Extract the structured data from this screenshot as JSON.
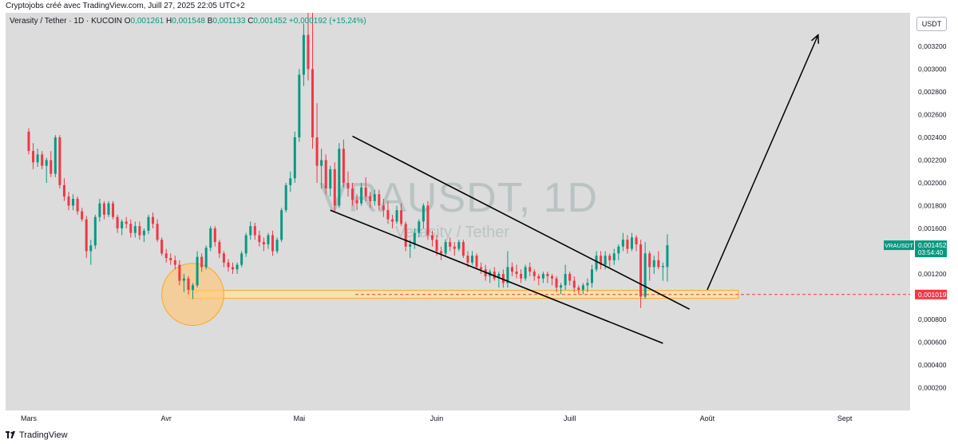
{
  "header": {
    "credit": "Cryptojobs créé avec TradingView.com, Juill 27, 2025 22:05 UTC+2"
  },
  "legend": {
    "symbol": "Verasity / Tether · 1D · KUCOIN",
    "open_label": "O",
    "open": "0,001261",
    "high_label": "H",
    "high": "0,001548",
    "low_label": "B",
    "low": "0,001133",
    "close_label": "C",
    "close": "0,001452",
    "change": "+0,000192 (+15,24%)"
  },
  "watermark": {
    "ticker": "VRAUSDT, 1D",
    "name": "Verasity / Tether"
  },
  "currency_button": "USDT",
  "colors": {
    "up": "#089981",
    "down": "#f23645",
    "zone_fill": "#fce3a6",
    "zone_border": "#f7a823",
    "circle_fill": "#fcc87e",
    "circle_border": "#f7a823",
    "line": "#000000",
    "axis_text": "#131722"
  },
  "chart_data": {
    "type": "candlestick",
    "title": "VRAUSDT, 1D",
    "y_ticks": [
      "0,003200",
      "0,003000",
      "0,002800",
      "0,002600",
      "0,002400",
      "0,002200",
      "0,002000",
      "0,001800",
      "0,001600",
      "0,001400",
      "0,001200",
      "0,000800",
      "0,000600",
      "0,000400",
      "0,000200"
    ],
    "x_ticks": [
      {
        "label": "Mars",
        "day": 0
      },
      {
        "label": "Avr",
        "day": 31
      },
      {
        "label": "Mai",
        "day": 61
      },
      {
        "label": "Juin",
        "day": 92
      },
      {
        "label": "Juill",
        "day": 122
      },
      {
        "label": "Août",
        "day": 153
      },
      {
        "label": "Sept",
        "day": 184
      }
    ],
    "price_label": {
      "symbol": "VRAUSDT",
      "value": "0,001452",
      "countdown": "03:54:40"
    },
    "level_label": {
      "value": "0,001019",
      "price": 0.001019
    },
    "support_zone": {
      "low": 0.000985,
      "high": 0.001055,
      "from_day": 36,
      "to_day": 160
    },
    "highlight_circle": {
      "center_day": 37,
      "center_price": 0.00102,
      "radius_days": 7
    },
    "channel": [
      {
        "name": "upper-line",
        "points": [
          [
            73,
            0.00241
          ],
          [
            149,
            0.00089
          ]
        ]
      },
      {
        "name": "lower-line",
        "points": [
          [
            68,
            0.00176
          ],
          [
            143,
            0.00059
          ]
        ]
      }
    ],
    "projection": {
      "from": [
        153,
        0.00106
      ],
      "to": [
        178,
        0.0033
      ]
    },
    "candles": [
      [
        0.00245,
        0.00248,
        0.00225,
        0.00228
      ],
      [
        0.00228,
        0.00235,
        0.00212,
        0.00218
      ],
      [
        0.00218,
        0.0023,
        0.00214,
        0.00225
      ],
      [
        0.00225,
        0.00228,
        0.00212,
        0.00215
      ],
      [
        0.00215,
        0.00222,
        0.002,
        0.0022
      ],
      [
        0.0022,
        0.00228,
        0.00205,
        0.00208
      ],
      [
        0.00208,
        0.00242,
        0.00205,
        0.0024
      ],
      [
        0.0024,
        0.00242,
        0.00195,
        0.00198
      ],
      [
        0.00198,
        0.00204,
        0.00184,
        0.00188
      ],
      [
        0.00188,
        0.00192,
        0.00176,
        0.0018
      ],
      [
        0.0018,
        0.0019,
        0.00176,
        0.00186
      ],
      [
        0.00186,
        0.00188,
        0.00172,
        0.00175
      ],
      [
        0.00175,
        0.00178,
        0.00166,
        0.00168
      ],
      [
        0.00168,
        0.00171,
        0.00134,
        0.0014
      ],
      [
        0.0014,
        0.0015,
        0.00128,
        0.00145
      ],
      [
        0.00145,
        0.00172,
        0.00142,
        0.0017
      ],
      [
        0.0017,
        0.00186,
        0.00166,
        0.00182
      ],
      [
        0.00182,
        0.00184,
        0.00168,
        0.00172
      ],
      [
        0.00172,
        0.00184,
        0.0017,
        0.00182
      ],
      [
        0.00182,
        0.00184,
        0.00168,
        0.0017
      ],
      [
        0.0017,
        0.00172,
        0.00156,
        0.0016
      ],
      [
        0.0016,
        0.00168,
        0.00154,
        0.00166
      ],
      [
        0.00166,
        0.0017,
        0.0016,
        0.00164
      ],
      [
        0.00164,
        0.00168,
        0.00152,
        0.00156
      ],
      [
        0.00156,
        0.00166,
        0.00152,
        0.00162
      ],
      [
        0.00162,
        0.00166,
        0.0015,
        0.00154
      ],
      [
        0.00154,
        0.0016,
        0.00148,
        0.00158
      ],
      [
        0.00158,
        0.00172,
        0.00155,
        0.0017
      ],
      [
        0.0017,
        0.00174,
        0.0016,
        0.00164
      ],
      [
        0.00164,
        0.00168,
        0.00148,
        0.0015
      ],
      [
        0.0015,
        0.00152,
        0.00136,
        0.00138
      ],
      [
        0.00138,
        0.00142,
        0.0013,
        0.00134
      ],
      [
        0.00134,
        0.00138,
        0.00128,
        0.00132
      ],
      [
        0.00132,
        0.00136,
        0.00124,
        0.00128
      ],
      [
        0.00128,
        0.00132,
        0.0011,
        0.00114
      ],
      [
        0.00114,
        0.0012,
        0.00104,
        0.00116
      ],
      [
        0.00116,
        0.00118,
        0.00102,
        0.00106
      ],
      [
        0.00106,
        0.00112,
        0.00098,
        0.0011
      ],
      [
        0.0011,
        0.0014,
        0.00108,
        0.00135
      ],
      [
        0.00135,
        0.00138,
        0.00122,
        0.00126
      ],
      [
        0.00126,
        0.00145,
        0.00124,
        0.00143
      ],
      [
        0.00143,
        0.00162,
        0.0014,
        0.0016
      ],
      [
        0.0016,
        0.00162,
        0.00144,
        0.00148
      ],
      [
        0.00148,
        0.0015,
        0.00134,
        0.00138
      ],
      [
        0.00138,
        0.0014,
        0.00126,
        0.0013
      ],
      [
        0.0013,
        0.00133,
        0.00122,
        0.00126
      ],
      [
        0.00126,
        0.0013,
        0.0012,
        0.00124
      ],
      [
        0.00124,
        0.0013,
        0.0012,
        0.00128
      ],
      [
        0.00128,
        0.0014,
        0.00126,
        0.00138
      ],
      [
        0.00138,
        0.00156,
        0.00135,
        0.00154
      ],
      [
        0.00154,
        0.00166,
        0.0015,
        0.00162
      ],
      [
        0.00162,
        0.00165,
        0.0015,
        0.00154
      ],
      [
        0.00154,
        0.00158,
        0.00144,
        0.00148
      ],
      [
        0.00148,
        0.00152,
        0.0014,
        0.00146
      ],
      [
        0.00146,
        0.00156,
        0.00142,
        0.00154
      ],
      [
        0.00154,
        0.00158,
        0.00136,
        0.0014
      ],
      [
        0.0014,
        0.00152,
        0.00138,
        0.0015
      ],
      [
        0.0015,
        0.00178,
        0.00148,
        0.00176
      ],
      [
        0.00176,
        0.002,
        0.00174,
        0.00198
      ],
      [
        0.00198,
        0.0021,
        0.00192,
        0.00204
      ],
      [
        0.00204,
        0.00245,
        0.002,
        0.0024
      ],
      [
        0.0024,
        0.003,
        0.00236,
        0.00295
      ],
      [
        0.00295,
        0.0034,
        0.00285,
        0.0033
      ],
      [
        0.0033,
        0.0036,
        0.0029,
        0.003
      ],
      [
        0.003,
        0.0036,
        0.0023,
        0.0024
      ],
      [
        0.0024,
        0.0027,
        0.002,
        0.00215
      ],
      [
        0.00215,
        0.0023,
        0.00195,
        0.0022
      ],
      [
        0.0022,
        0.00225,
        0.0019,
        0.00195
      ],
      [
        0.00195,
        0.00215,
        0.00188,
        0.00212
      ],
      [
        0.00212,
        0.00218,
        0.00175,
        0.0018
      ],
      [
        0.0018,
        0.00235,
        0.00178,
        0.0023
      ],
      [
        0.0023,
        0.00238,
        0.00196,
        0.002
      ],
      [
        0.002,
        0.0021,
        0.00188,
        0.00195
      ],
      [
        0.00195,
        0.002,
        0.0018,
        0.00185
      ],
      [
        0.00185,
        0.0019,
        0.00176,
        0.00182
      ],
      [
        0.00182,
        0.002,
        0.0018,
        0.00196
      ],
      [
        0.00196,
        0.00205,
        0.00184,
        0.00188
      ],
      [
        0.00188,
        0.00192,
        0.00178,
        0.00184
      ],
      [
        0.00184,
        0.00194,
        0.0018,
        0.0019
      ],
      [
        0.0019,
        0.00194,
        0.00176,
        0.0018
      ],
      [
        0.0018,
        0.00186,
        0.0017,
        0.00176
      ],
      [
        0.00176,
        0.00184,
        0.00164,
        0.00168
      ],
      [
        0.00168,
        0.00172,
        0.0016,
        0.00166
      ],
      [
        0.00166,
        0.0018,
        0.00164,
        0.00176
      ],
      [
        0.00176,
        0.00182,
        0.00162,
        0.00164
      ],
      [
        0.00164,
        0.00166,
        0.0014,
        0.00144
      ],
      [
        0.00144,
        0.0015,
        0.00134,
        0.00146
      ],
      [
        0.00146,
        0.0016,
        0.00142,
        0.00156
      ],
      [
        0.00156,
        0.00168,
        0.00152,
        0.00166
      ],
      [
        0.00166,
        0.00182,
        0.0016,
        0.0018
      ],
      [
        0.0018,
        0.00184,
        0.0015,
        0.00154
      ],
      [
        0.00154,
        0.00158,
        0.00144,
        0.0015
      ],
      [
        0.0015,
        0.00154,
        0.00136,
        0.0014
      ],
      [
        0.0014,
        0.00144,
        0.00132,
        0.00138
      ],
      [
        0.00138,
        0.0015,
        0.00136,
        0.00148
      ],
      [
        0.00148,
        0.00152,
        0.0014,
        0.00144
      ],
      [
        0.00144,
        0.00148,
        0.00136,
        0.00142
      ],
      [
        0.00142,
        0.0015,
        0.0014,
        0.00148
      ],
      [
        0.00148,
        0.0015,
        0.00134,
        0.00136
      ],
      [
        0.00136,
        0.0014,
        0.00126,
        0.0013
      ],
      [
        0.0013,
        0.0014,
        0.00128,
        0.00136
      ],
      [
        0.00136,
        0.00138,
        0.00124,
        0.00126
      ],
      [
        0.00126,
        0.0013,
        0.0012,
        0.00124
      ],
      [
        0.00124,
        0.00128,
        0.00114,
        0.00118
      ],
      [
        0.00118,
        0.00124,
        0.00112,
        0.00122
      ],
      [
        0.00122,
        0.00126,
        0.00114,
        0.00116
      ],
      [
        0.00116,
        0.00122,
        0.00108,
        0.0012
      ],
      [
        0.0012,
        0.00124,
        0.00108,
        0.00112
      ],
      [
        0.00112,
        0.0014,
        0.00108,
        0.00126
      ],
      [
        0.00126,
        0.0013,
        0.00118,
        0.00122
      ],
      [
        0.00122,
        0.00128,
        0.00116,
        0.0012
      ],
      [
        0.0012,
        0.00124,
        0.00112,
        0.00116
      ],
      [
        0.00116,
        0.00128,
        0.00114,
        0.00126
      ],
      [
        0.00126,
        0.0013,
        0.00118,
        0.00122
      ],
      [
        0.00122,
        0.00124,
        0.00114,
        0.00118
      ],
      [
        0.00118,
        0.0012,
        0.0011,
        0.00116
      ],
      [
        0.00116,
        0.00122,
        0.00112,
        0.0012
      ],
      [
        0.0012,
        0.00122,
        0.00112,
        0.00118
      ],
      [
        0.00118,
        0.0012,
        0.0011,
        0.00116
      ],
      [
        0.00116,
        0.00118,
        0.00104,
        0.00108
      ],
      [
        0.00108,
        0.00112,
        0.00102,
        0.0011
      ],
      [
        0.0011,
        0.00128,
        0.00106,
        0.0012
      ],
      [
        0.0012,
        0.00122,
        0.0011,
        0.00114
      ],
      [
        0.00114,
        0.00118,
        0.00104,
        0.00108
      ],
      [
        0.00108,
        0.0011,
        0.00102,
        0.00106
      ],
      [
        0.00106,
        0.00112,
        0.00102,
        0.0011
      ],
      [
        0.0011,
        0.00116,
        0.00104,
        0.00112
      ],
      [
        0.00112,
        0.00128,
        0.00108,
        0.00124
      ],
      [
        0.00124,
        0.0014,
        0.00122,
        0.00136
      ],
      [
        0.00136,
        0.0014,
        0.00124,
        0.00128
      ],
      [
        0.00128,
        0.0014,
        0.00124,
        0.00136
      ],
      [
        0.00136,
        0.00138,
        0.00126,
        0.00132
      ],
      [
        0.00132,
        0.00142,
        0.00128,
        0.00138
      ],
      [
        0.00138,
        0.00146,
        0.00132,
        0.00144
      ],
      [
        0.00144,
        0.00156,
        0.0014,
        0.0015
      ],
      [
        0.0015,
        0.00154,
        0.00138,
        0.00142
      ],
      [
        0.00142,
        0.00156,
        0.0014,
        0.00152
      ],
      [
        0.00152,
        0.00154,
        0.0014,
        0.00146
      ],
      [
        0.00146,
        0.0015,
        0.0009,
        0.001
      ],
      [
        0.001,
        0.00148,
        0.00098,
        0.00138
      ],
      [
        0.00138,
        0.0014,
        0.00114,
        0.00126
      ],
      [
        0.00126,
        0.00136,
        0.0012,
        0.00132
      ],
      [
        0.00132,
        0.0014,
        0.00124,
        0.00126
      ],
      [
        0.00126,
        0.0013,
        0.00114,
        0.00127
      ],
      [
        0.001261,
        0.001548,
        0.001133,
        0.001452
      ]
    ]
  },
  "footer": {
    "brand": "TradingView"
  }
}
